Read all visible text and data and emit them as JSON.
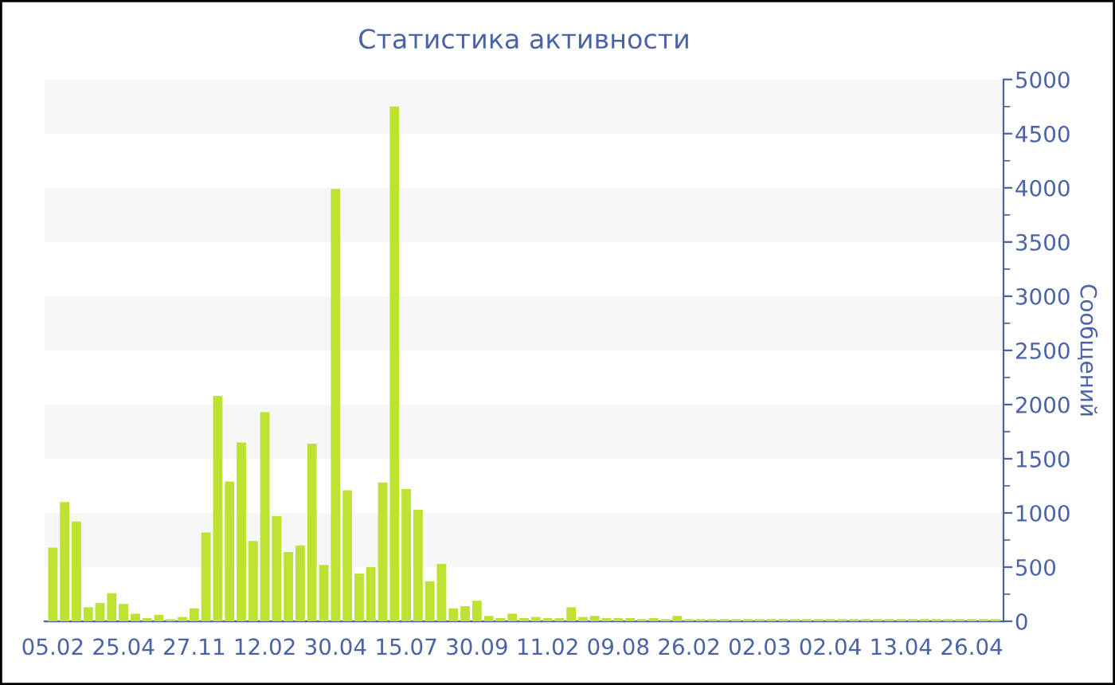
{
  "chart_data": {
    "type": "bar",
    "title": "Статистика активности",
    "ylabel": "Сообщений",
    "categories": [
      "05.02",
      null,
      null,
      null,
      null,
      null,
      "25.04",
      null,
      null,
      null,
      null,
      null,
      "27.11",
      null,
      null,
      null,
      null,
      null,
      "12.02",
      null,
      null,
      null,
      null,
      null,
      "30.04",
      null,
      null,
      null,
      null,
      null,
      "15.07",
      null,
      null,
      null,
      null,
      null,
      "30.09",
      null,
      null,
      null,
      null,
      null,
      "11.02",
      null,
      null,
      null,
      null,
      null,
      "09.08",
      null,
      null,
      null,
      null,
      null,
      "26.02",
      null,
      null,
      null,
      null,
      null,
      "02.03",
      null,
      null,
      null,
      null,
      null,
      "02.04",
      null,
      null,
      null,
      null,
      null,
      "13.04",
      null,
      null,
      null,
      null,
      null,
      "26.04",
      null,
      null
    ],
    "values": [
      680,
      1100,
      920,
      130,
      170,
      260,
      160,
      70,
      30,
      60,
      20,
      40,
      120,
      820,
      2080,
      1290,
      1650,
      740,
      1930,
      970,
      640,
      700,
      1640,
      520,
      3990,
      1210,
      440,
      500,
      1280,
      4750,
      1220,
      1030,
      370,
      530,
      120,
      140,
      190,
      50,
      30,
      70,
      30,
      40,
      30,
      30,
      130,
      40,
      50,
      30,
      30,
      30,
      20,
      30,
      20,
      50,
      20,
      20,
      20,
      20,
      20,
      20,
      20,
      20,
      20,
      20,
      20,
      20,
      20,
      20,
      20,
      20,
      20,
      20,
      20,
      20,
      20,
      20,
      20,
      20,
      20,
      20,
      20
    ],
    "color": "#bde232",
    "ylim": [
      0,
      5000
    ],
    "yticks": [
      0,
      500,
      1000,
      1500,
      2000,
      2500,
      3000,
      3500,
      4000,
      4500,
      5000
    ],
    "bands": [
      {
        "axis": "y",
        "from": 500,
        "to": 1000,
        "color": "#f7f7f7"
      },
      {
        "axis": "y",
        "from": 1500,
        "to": 2000,
        "color": "#f7f7f7"
      },
      {
        "axis": "y",
        "from": 2500,
        "to": 3000,
        "color": "#f7f7f7"
      },
      {
        "axis": "y",
        "from": 3500,
        "to": 4000,
        "color": "#f7f7f7"
      },
      {
        "axis": "y",
        "from": 4500,
        "to": 5000,
        "color": "#f7f7f7"
      }
    ],
    "grid": false,
    "legend": false
  }
}
